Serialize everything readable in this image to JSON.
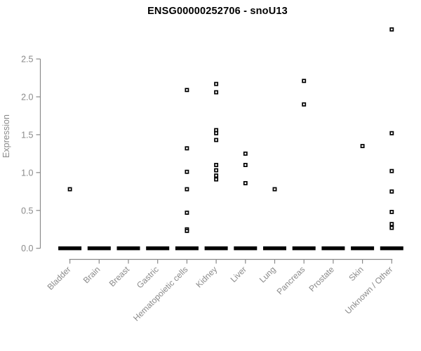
{
  "chart_data": {
    "type": "scatter",
    "title": "ENSG00000252706 - snoU13",
    "ylabel": "Expression",
    "xlabel": "",
    "ylim": [
      0,
      2.5
    ],
    "yticks": [
      "0.0",
      "0.5",
      "1.0",
      "1.5",
      "2.0",
      "2.5"
    ],
    "grid": false,
    "legend": "none",
    "marker": "open-square",
    "categories": [
      "Bladder",
      "Brain",
      "Breast",
      "Gastric",
      "Hematopoietic cells",
      "Kidney",
      "Liver",
      "Lung",
      "Pancreas",
      "Prostate",
      "Skin",
      "Unknown / Other"
    ],
    "series": [
      {
        "category": "Bladder",
        "values": [
          0.78
        ]
      },
      {
        "category": "Brain",
        "values": []
      },
      {
        "category": "Breast",
        "values": []
      },
      {
        "category": "Gastric",
        "values": []
      },
      {
        "category": "Hematopoietic cells",
        "values": [
          2.09,
          1.32,
          1.01,
          0.78,
          0.47,
          0.25,
          0.23
        ]
      },
      {
        "category": "Kidney",
        "values": [
          2.17,
          2.06,
          1.56,
          1.52,
          1.43,
          1.1,
          1.03,
          0.96,
          0.91
        ]
      },
      {
        "category": "Liver",
        "values": [
          1.25,
          1.1,
          0.86
        ]
      },
      {
        "category": "Lung",
        "values": [
          0.78
        ]
      },
      {
        "category": "Pancreas",
        "values": [
          2.21,
          1.9
        ]
      },
      {
        "category": "Prostate",
        "values": []
      },
      {
        "category": "Skin",
        "values": [
          1.35
        ]
      },
      {
        "category": "Unknown / Other",
        "values": [
          2.89,
          1.52,
          1.02,
          0.75,
          0.48,
          0.32,
          0.27
        ]
      }
    ],
    "zero_cluster": {
      "present_in_all_categories": true,
      "value": 0,
      "rendered_as": "thick-black-dash"
    },
    "colors": {
      "points": "#000000",
      "zero_dash": "#000000",
      "axis": "#8a8a8a",
      "tick_labels": "#8a8a8a",
      "title": "#000000",
      "background": "#ffffff"
    }
  }
}
